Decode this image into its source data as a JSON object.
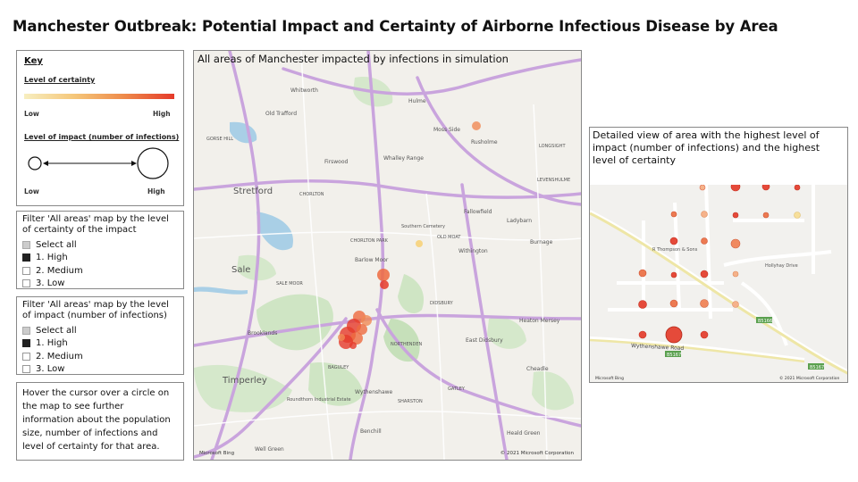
{
  "title": "Manchester Outbreak: Potential Impact and Certainty of Airborne Infectious Disease by Area",
  "key": {
    "heading": "Key",
    "certainty_label": "Level of certainty",
    "certainty_low": "Low",
    "certainty_high": "High",
    "impact_label": "Level of impact (number of infections)",
    "impact_low": "Low",
    "impact_high": "High",
    "gradient_colors": [
      "#f7eec0",
      "#f5c77a",
      "#ee8a4a",
      "#e53a2a"
    ]
  },
  "filter_certainty": {
    "title": "Filter 'All areas' map by the level of certainty of the impact",
    "options": [
      {
        "label": "Select all",
        "state": "partial"
      },
      {
        "label": "1. High",
        "state": "checked"
      },
      {
        "label": "2. Medium",
        "state": "unchecked"
      },
      {
        "label": "3. Low",
        "state": "unchecked"
      }
    ]
  },
  "filter_impact": {
    "title": "Filter 'All areas' map by the level of impact (number of infections)",
    "options": [
      {
        "label": "Select all",
        "state": "partial"
      },
      {
        "label": "1. High",
        "state": "checked"
      },
      {
        "label": "2. Medium",
        "state": "unchecked"
      },
      {
        "label": "3. Low",
        "state": "unchecked"
      }
    ]
  },
  "hover_note": "Hover the cursor over a circle on the map to see further information about the population size, number of infections and level of certainty for that area.",
  "main_map": {
    "title": "All areas of Manchester impacted by infections in simulation",
    "copyright": "© 2021 Microsoft Corporation",
    "bing": "Microsoft Bing",
    "places": {
      "stretford": "Stretford",
      "sale": "Sale",
      "timperley": "Timperley",
      "old_trafford": "Old Trafford",
      "hulme": "Hulme",
      "moss_side": "Moss Side",
      "rusholme": "Rusholme",
      "whalley_range": "Whalley Range",
      "firswood": "Firswood",
      "chorlton": "CHORLTON",
      "chorlton_park": "CHORLTON PARK",
      "old_moat": "OLD MOAT",
      "fallowfield": "Fallowfield",
      "ladybarn": "Ladybarn",
      "burnage": "Burnage",
      "withington": "Withington",
      "didsbury": "DIDSBURY",
      "northenden": "NORTHENDEN",
      "east_didsbury": "East Didsbury",
      "wythenshawe": "Wythenshawe",
      "baguley": "BAGULEY",
      "sharston": "SHARSTON",
      "gatley": "GATLEY",
      "heald_green": "Heald Green",
      "brooklands": "Brooklands",
      "sale_moor": "SALE MOOR",
      "longsight": "LONGSIGHT",
      "levenshulme": "LEVENSHULME",
      "heaton_mersey": "Heaton Mersey",
      "cheadle": "Cheadle",
      "benchill": "Benchill",
      "roundthorn": "Roundthorn Industrial Estate",
      "barlow_moor": "Barlow Moor",
      "whitworth": "Whitworth",
      "gorse_hill": "GORSE HILL",
      "well_green": "Well Green",
      "southern_cem": "Southern Cemetery"
    }
  },
  "detail": {
    "title": "Detailed view of area with the highest level of impact (number of infections) and the highest level of certainty",
    "copyright": "© 2021 Microsoft Corporation",
    "bing": "Microsoft Bing",
    "labels": {
      "road": "Wythenshawe Road",
      "drive": "Hollyhay Drive",
      "sons": "R Thompson & Sons",
      "b5166": "B5166",
      "b5167": "B5167",
      "b5167b": "B5167"
    }
  }
}
